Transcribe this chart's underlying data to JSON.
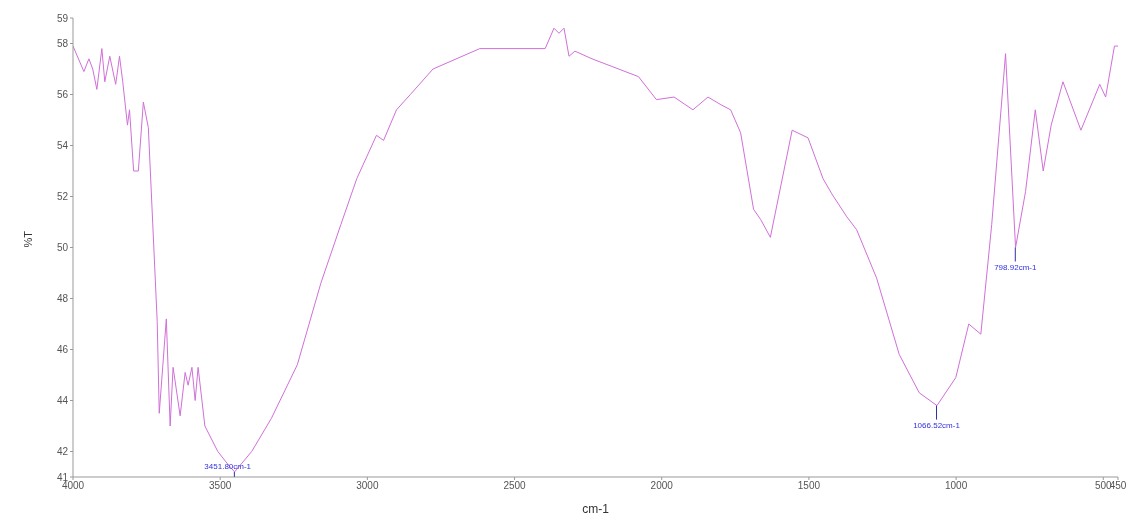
{
  "chart_data": {
    "type": "line",
    "xlabel": "cm-1",
    "ylabel": "%T",
    "x": [
      4000,
      3963,
      3946,
      3933,
      3919,
      3902,
      3892,
      3875,
      3855,
      3842,
      3831,
      3815,
      3808,
      3794,
      3778,
      3761,
      3744,
      3714,
      3707,
      3683,
      3670,
      3660,
      3636,
      3619,
      3609,
      3596,
      3585,
      3575,
      3552,
      3508,
      3474,
      3451,
      3393,
      3326,
      3238,
      3158,
      3090,
      3036,
      2969,
      2945,
      2901,
      2854,
      2777,
      2618,
      2396,
      2366,
      2349,
      2332,
      2315,
      2295,
      2237,
      2079,
      2018,
      1958,
      1894,
      1843,
      1799,
      1766,
      1732,
      1688,
      1664,
      1631,
      1557,
      1503,
      1452,
      1422,
      1371,
      1338,
      1270,
      1193,
      1125,
      1065,
      1001,
      957,
      916,
      879,
      832,
      798,
      764,
      731,
      704,
      677,
      637,
      576,
      512,
      492,
      462,
      450
    ],
    "series": [
      {
        "color": "#d070d8",
        "values": [
          57.9,
          56.9,
          57.4,
          57.0,
          56.2,
          57.8,
          56.5,
          57.5,
          56.4,
          57.5,
          56.5,
          54.8,
          55.4,
          53.0,
          53.0,
          55.7,
          54.7,
          47.1,
          43.5,
          47.2,
          43.0,
          45.3,
          43.4,
          45.1,
          44.6,
          45.3,
          44.0,
          45.3,
          43.0,
          42.0,
          41.5,
          41.2,
          42.0,
          43.3,
          45.4,
          48.6,
          50.9,
          52.7,
          54.4,
          54.2,
          55.4,
          56.0,
          57.0,
          57.8,
          57.8,
          58.6,
          58.4,
          58.6,
          57.5,
          57.7,
          57.4,
          56.7,
          55.8,
          55.9,
          55.4,
          55.9,
          55.6,
          55.4,
          54.5,
          51.5,
          51.1,
          50.4,
          54.6,
          54.3,
          52.7,
          52.1,
          51.2,
          50.7,
          48.8,
          45.8,
          44.3,
          43.8,
          44.9,
          47.0,
          46.6,
          50.9,
          57.6,
          50.0,
          52.2,
          55.4,
          53.0,
          54.8,
          56.5,
          54.6,
          56.4,
          55.9,
          57.9,
          57.9
        ]
      }
    ],
    "xlim": [
      4000,
      450
    ],
    "xticks": [
      4000,
      3500,
      3000,
      2500,
      2000,
      1500,
      1000,
      500,
      450
    ],
    "ylim": [
      41,
      59
    ],
    "yticks": [
      41,
      42,
      44,
      46,
      48,
      50,
      52,
      54,
      56,
      58,
      59
    ],
    "grid": false,
    "legend": false,
    "marker": "none",
    "line_style": "solid",
    "annotations": [
      {
        "text": "3451.80cm-1",
        "x": 3451.8,
        "y": 41.2
      },
      {
        "text": "1066.52cm-1",
        "x": 1066.52,
        "y": 43.8
      },
      {
        "text": "798.92cm-1",
        "x": 798.92,
        "y": 50.0
      }
    ]
  }
}
